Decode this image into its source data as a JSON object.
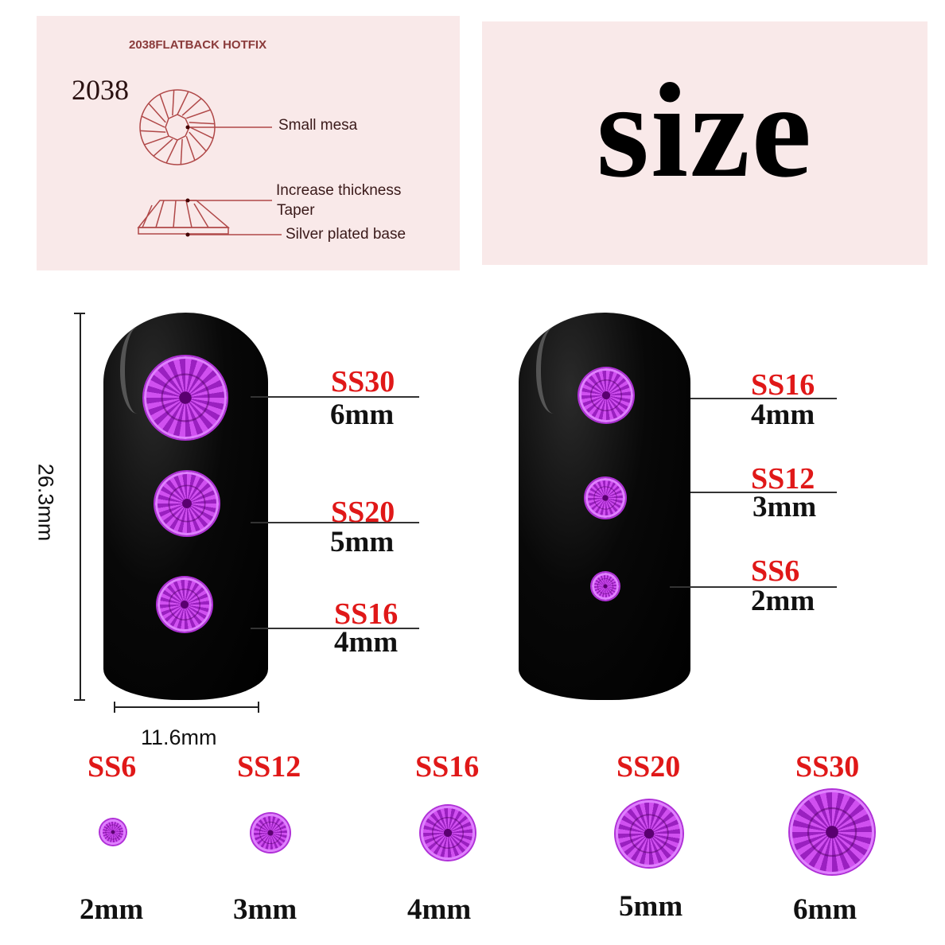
{
  "diagram": {
    "header": "2038FLATBACK HOTFIX",
    "model": "2038",
    "labels": [
      "Small mesa",
      "Increase thickness",
      "Taper",
      "Silver plated base"
    ]
  },
  "title": "size",
  "nail_dimensions": {
    "height": "26.3mm",
    "width": "11.6mm"
  },
  "nail_left": [
    {
      "ss": "SS30",
      "mm": "6mm"
    },
    {
      "ss": "SS20",
      "mm": "5mm"
    },
    {
      "ss": "SS16",
      "mm": "4mm"
    }
  ],
  "nail_right": [
    {
      "ss": "SS16",
      "mm": "4mm"
    },
    {
      "ss": "SS12",
      "mm": "3mm"
    },
    {
      "ss": "SS6",
      "mm": "2mm"
    }
  ],
  "size_row": [
    {
      "ss": "SS6",
      "mm": "2mm"
    },
    {
      "ss": "SS12",
      "mm": "3mm"
    },
    {
      "ss": "SS16",
      "mm": "4mm"
    },
    {
      "ss": "SS20",
      "mm": "5mm"
    },
    {
      "ss": "SS30",
      "mm": "6mm"
    }
  ],
  "colors": {
    "label_red": "#e01818",
    "gem_purple": "#b030d8",
    "panel_pink": "#f9e9e9"
  }
}
